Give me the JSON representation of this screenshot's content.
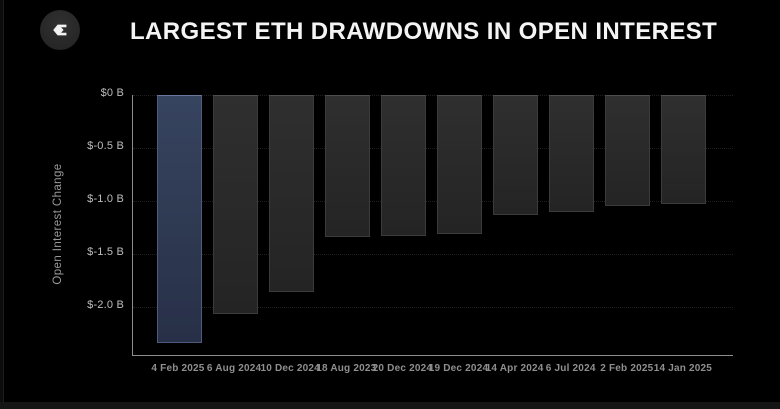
{
  "header": {
    "logo_icon": "sigma-logo",
    "title": "LARGEST ETH DRAWDOWNS IN OPEN INTEREST"
  },
  "colors": {
    "background": "#000000",
    "title_text": "#f4f4f4",
    "ytick_text": "#bdbdbd",
    "xtick_text": "#8f8f8f",
    "axis_line": "#8c8c8c",
    "gridline": "rgba(255,255,255,0.12)",
    "bar_default": "#2a2a2a",
    "bar_highlight": "#36425f",
    "logo_circle": "#2a2a2a"
  },
  "chart_data": {
    "type": "bar",
    "title": "LARGEST ETH DRAWDOWNS IN OPEN INTEREST",
    "unit": "USD billions",
    "categories": [
      "4 Feb 2025",
      "6 Aug 2024",
      "10 Dec 2024",
      "18 Aug 2023",
      "20 Dec 2024",
      "19 Dec 2024",
      "14 Apr 2024",
      "6 Jul 2024",
      "2 Feb 2025",
      "14 Jan 2025"
    ],
    "values": [
      -2.34,
      -2.06,
      -1.86,
      -1.34,
      -1.33,
      -1.31,
      -1.13,
      -1.1,
      -1.05,
      -1.03
    ],
    "highlight_index": 0,
    "xlabel": "",
    "ylabel": "Open Interest Change",
    "ylim": [
      -2.45,
      0
    ],
    "yticks": [
      {
        "label": "$0 B",
        "value": 0
      },
      {
        "label": "$-0.5 B",
        "value": -0.5
      },
      {
        "label": "$-1.0 B",
        "value": -1.0
      },
      {
        "label": "$-1.5 B",
        "value": -1.5
      },
      {
        "label": "$-2.0 B",
        "value": -2.0
      }
    ],
    "grid": "horizontal-dotted",
    "legend": "none"
  }
}
